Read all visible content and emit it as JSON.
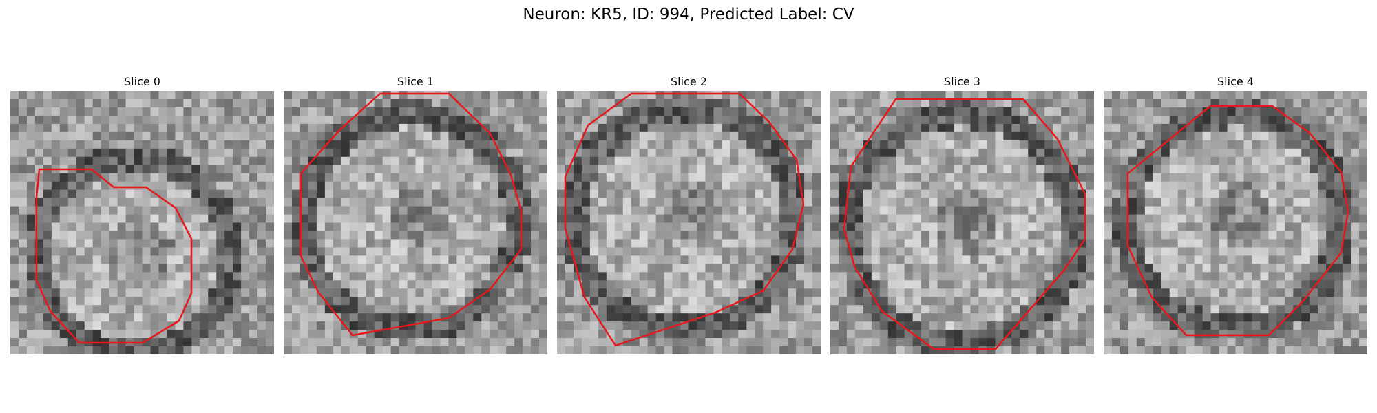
{
  "figure": {
    "title": "Neuron: KR5, ID: 994, Predicted Label: CV"
  },
  "panels": [
    {
      "title": "Slice 0"
    },
    {
      "title": "Slice 1"
    },
    {
      "title": "Slice 2"
    },
    {
      "title": "Slice 3"
    },
    {
      "title": "Slice 4"
    }
  ],
  "colors": {
    "contour": "#e8171a",
    "background": "#ffffff"
  }
}
